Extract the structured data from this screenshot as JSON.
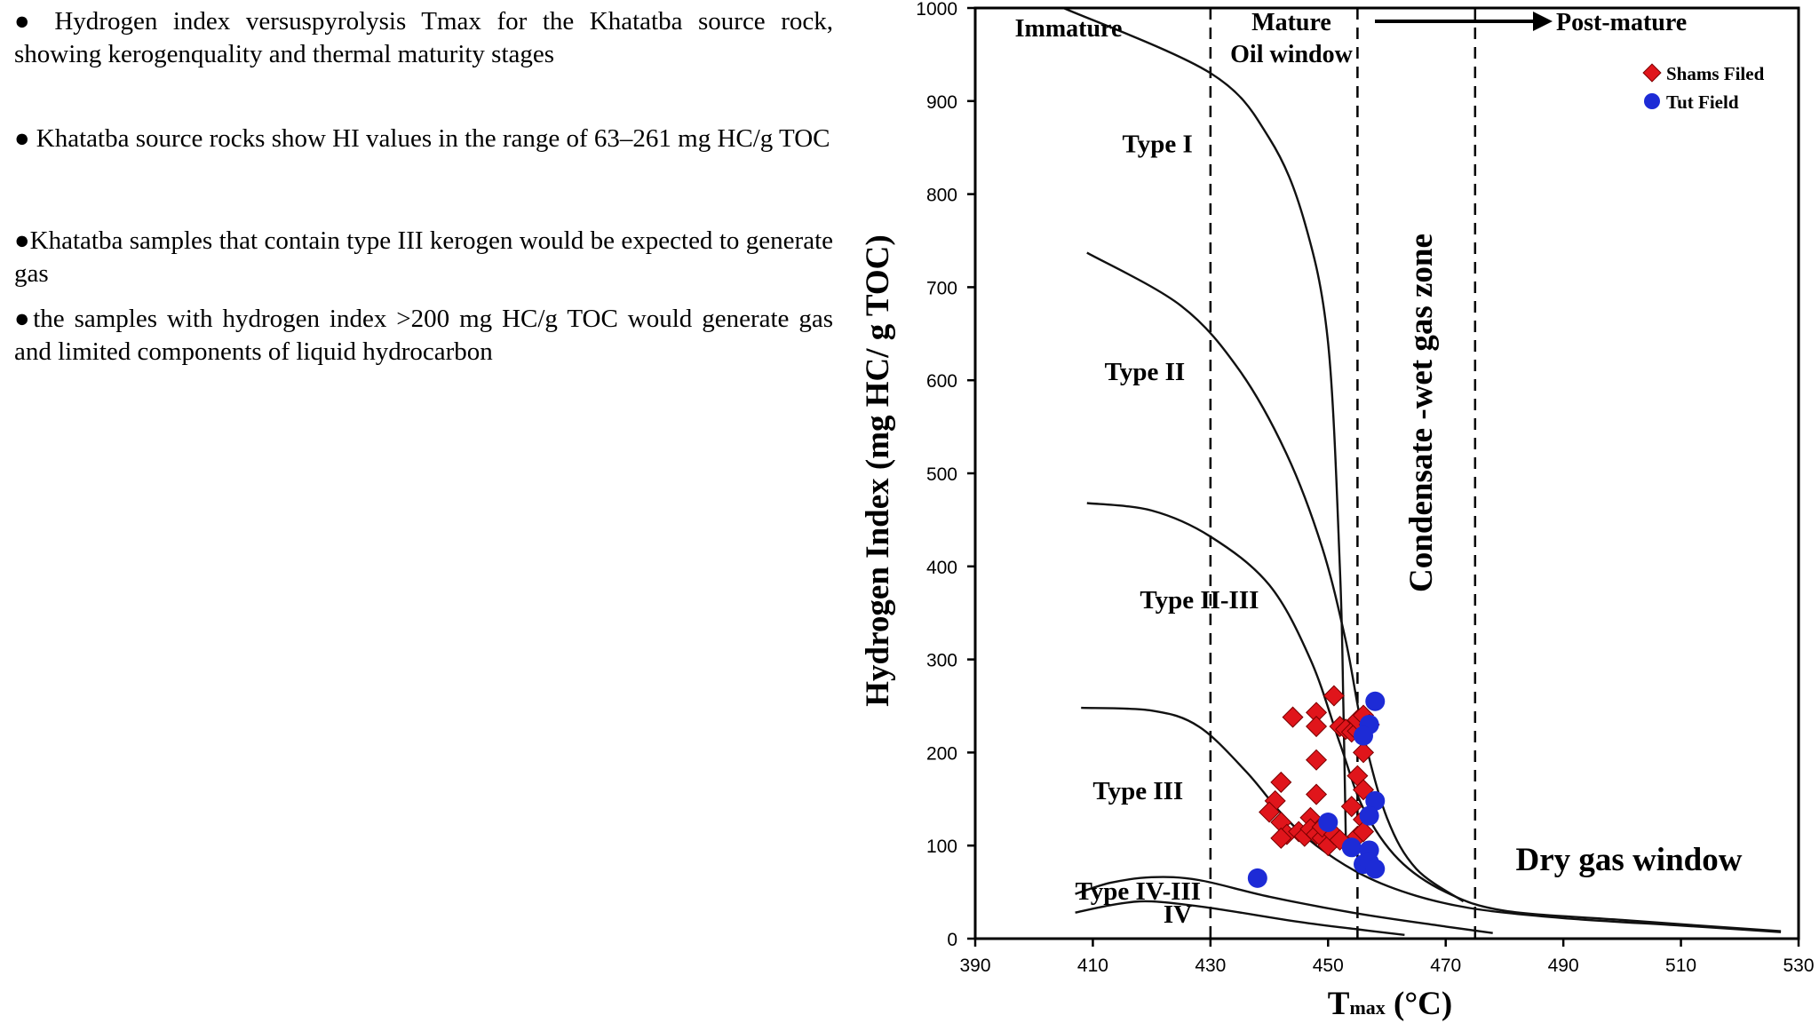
{
  "bullets": [
    "● Hydrogen index versuspyrolysis Tmax for the Khatatba source rock, showing kerogenquality and thermal maturity stages",
    "● Khatatba source rocks show HI values in the range of 63–261 mg HC/g TOC",
    "●Khatatba samples that contain type III kerogen would be expected to generate gas",
    "●the samples with hydrogen index >200 mg HC/g TOC would generate gas and limited components of liquid hydrocarbon"
  ],
  "chart_data": {
    "type": "scatter",
    "xlabel": "T",
    "xlabel_sub": "max",
    "xlabel_unit": " (°C)",
    "ylabel": "Hydrogen Index (mg HC/ g TOC)",
    "xlim": [
      390,
      530
    ],
    "ylim": [
      0,
      1000
    ],
    "xticks": [
      390,
      410,
      430,
      450,
      470,
      490,
      510,
      530
    ],
    "yticks": [
      0,
      100,
      200,
      300,
      400,
      500,
      600,
      700,
      800,
      900,
      1000
    ],
    "grid": false,
    "legend_position": "top-right",
    "boundaries": [
      430,
      455,
      475
    ],
    "regions": {
      "immature": "Immature",
      "mature_1": "Mature",
      "mature_2": "Oil window",
      "post_mature": "Post-mature",
      "condensate": "Condensate -wet gas zone",
      "dry_gas": "Dry gas window"
    },
    "type_labels": [
      {
        "text": "Type I",
        "x": 415,
        "y": 845
      },
      {
        "text": "Type II",
        "x": 412,
        "y": 600
      },
      {
        "text": "Type II-III",
        "x": 418,
        "y": 355
      },
      {
        "text": "Type III",
        "x": 410,
        "y": 150
      },
      {
        "text": "Type IV-III",
        "x": 407,
        "y": 42
      },
      {
        "text": "IV",
        "x": 422,
        "y": 17
      }
    ],
    "curves": [
      {
        "name": "Type I",
        "points": [
          [
            405,
            1000
          ],
          [
            430,
            930
          ],
          [
            440,
            860
          ],
          [
            446,
            770
          ],
          [
            450,
            640
          ],
          [
            452,
            400
          ],
          [
            452.6,
            250
          ],
          [
            453,
            110
          ]
        ]
      },
      {
        "name": "Type II",
        "points": [
          [
            409,
            737
          ],
          [
            425,
            680
          ],
          [
            435,
            610
          ],
          [
            443,
            520
          ],
          [
            449,
            420
          ],
          [
            453,
            320
          ],
          [
            456,
            220
          ],
          [
            460,
            130
          ],
          [
            465,
            75
          ],
          [
            473,
            40
          ]
        ]
      },
      {
        "name": "Type II-III",
        "points": [
          [
            409,
            468
          ],
          [
            420,
            460
          ],
          [
            430,
            432
          ],
          [
            440,
            380
          ],
          [
            447,
            300
          ],
          [
            452,
            210
          ],
          [
            456,
            140
          ],
          [
            462,
            85
          ],
          [
            470,
            50
          ],
          [
            480,
            30
          ],
          [
            500,
            20
          ],
          [
            527,
            8
          ]
        ]
      },
      {
        "name": "Type III",
        "points": [
          [
            408,
            248
          ],
          [
            420,
            245
          ],
          [
            428,
            228
          ],
          [
            436,
            180
          ],
          [
            442,
            135
          ],
          [
            448,
            100
          ],
          [
            456,
            68
          ],
          [
            465,
            46
          ],
          [
            475,
            32
          ],
          [
            490,
            22
          ],
          [
            510,
            14
          ],
          [
            527,
            7
          ]
        ]
      },
      {
        "name": "Type IV-III",
        "points": [
          [
            407,
            48
          ],
          [
            413,
            60
          ],
          [
            420,
            66
          ],
          [
            428,
            63
          ],
          [
            440,
            45
          ],
          [
            455,
            27
          ],
          [
            470,
            13
          ],
          [
            478,
            6
          ]
        ]
      },
      {
        "name": "IV",
        "points": [
          [
            407,
            28
          ],
          [
            414,
            37
          ],
          [
            420,
            40
          ],
          [
            430,
            33
          ],
          [
            445,
            18
          ],
          [
            455,
            10
          ],
          [
            463,
            4
          ]
        ]
      }
    ],
    "series": [
      {
        "name": "Shams Filed",
        "marker": "diamond",
        "color": "#e0151b",
        "points": [
          [
            444,
            238
          ],
          [
            448,
            243
          ],
          [
            448,
            228
          ],
          [
            451,
            261
          ],
          [
            452,
            228
          ],
          [
            453,
            225
          ],
          [
            454,
            222
          ],
          [
            455,
            223
          ],
          [
            455,
            235
          ],
          [
            456,
            240
          ],
          [
            457,
            230
          ],
          [
            456,
            200
          ],
          [
            455,
            175
          ],
          [
            456,
            160
          ],
          [
            448,
            192
          ],
          [
            448,
            155
          ],
          [
            454,
            142
          ],
          [
            456,
            128
          ],
          [
            442,
            168
          ],
          [
            441,
            148
          ],
          [
            440,
            136
          ],
          [
            442,
            125
          ],
          [
            443,
            112
          ],
          [
            442,
            108
          ],
          [
            445,
            115
          ],
          [
            446,
            110
          ],
          [
            447,
            130
          ],
          [
            447,
            118
          ],
          [
            448,
            112
          ],
          [
            449,
            108
          ],
          [
            449,
            120
          ],
          [
            450,
            100
          ],
          [
            451,
            112
          ],
          [
            452,
            106
          ],
          [
            455,
            110
          ],
          [
            456,
            115
          ]
        ]
      },
      {
        "name": "Tut Field",
        "marker": "circle",
        "color": "#1d2bd6",
        "points": [
          [
            458,
            255
          ],
          [
            457,
            230
          ],
          [
            456,
            218
          ],
          [
            458,
            148
          ],
          [
            457,
            132
          ],
          [
            450,
            125
          ],
          [
            454,
            98
          ],
          [
            457,
            95
          ],
          [
            456,
            80
          ],
          [
            457,
            82
          ],
          [
            458,
            75
          ],
          [
            438,
            65
          ]
        ]
      }
    ]
  }
}
